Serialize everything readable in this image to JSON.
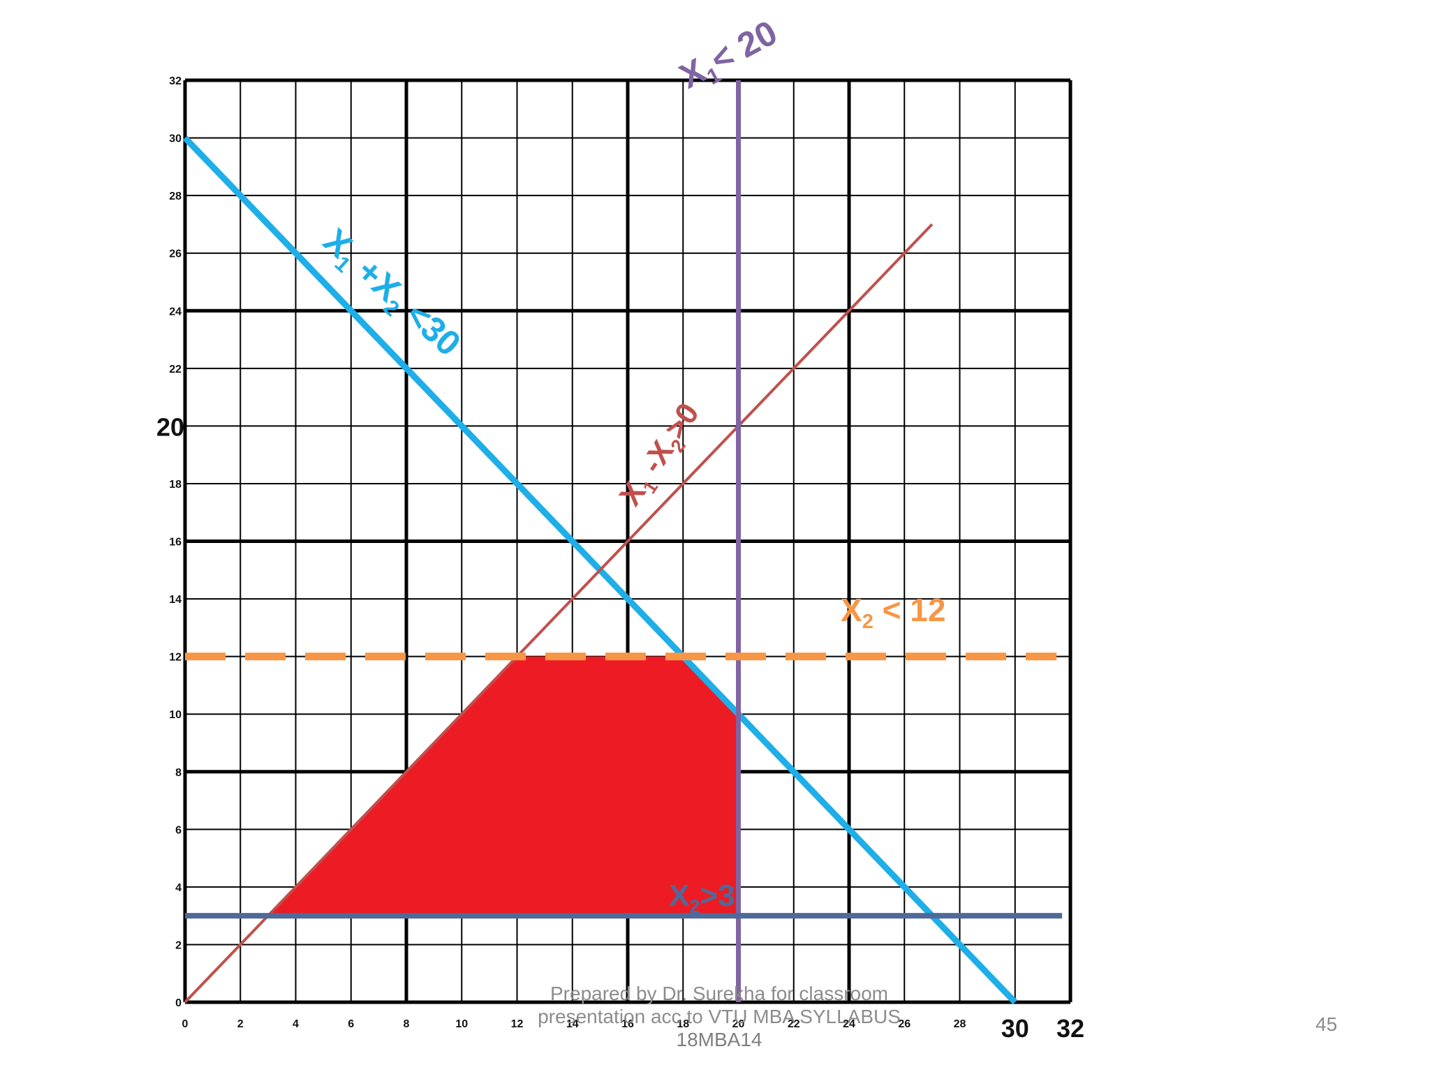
{
  "chart_data": {
    "type": "line",
    "title": "",
    "xlabel": "",
    "ylabel": "",
    "xlim": [
      0,
      32
    ],
    "ylim": [
      0,
      32
    ],
    "grid": true,
    "x_ticks": [
      0,
      2,
      4,
      6,
      8,
      10,
      12,
      14,
      16,
      18,
      20,
      22,
      24,
      26,
      28,
      30,
      32
    ],
    "x_tick_labels": [
      "0",
      "2",
      "4",
      "6",
      "8",
      "10",
      "12",
      "14",
      "16",
      "18",
      "20",
      "22",
      "24",
      "26",
      "28",
      "30",
      "32"
    ],
    "y_ticks": [
      0,
      2,
      4,
      6,
      8,
      10,
      12,
      14,
      16,
      18,
      20,
      22,
      24,
      26,
      28,
      30,
      32
    ],
    "y_tick_labels": [
      "0",
      "2",
      "4",
      "6",
      "8",
      "10",
      "12",
      "14",
      "16",
      "18",
      "20",
      "22",
      "24",
      "26",
      "28",
      "30",
      "32"
    ],
    "series": [
      {
        "name": "X1 + X2 < 30",
        "label_main": "X",
        "label_sub": "1",
        "label_rest": " +X",
        "label_sub2": "2",
        "label_tail": " <30",
        "color": "#1eaee8",
        "points": [
          [
            0,
            30
          ],
          [
            30,
            0
          ]
        ]
      },
      {
        "name": "X1 - X2 > 0",
        "label_main": "X",
        "label_sub": "1",
        "label_rest": " -X",
        "label_sub2": "2",
        "label_tail": ">0",
        "color": "#c0504d",
        "points": [
          [
            0,
            0
          ],
          [
            27,
            27
          ]
        ]
      },
      {
        "name": "X1 < 20",
        "label_main": "X",
        "label_sub": "1",
        "label_tail": "< 20",
        "color": "#8064a2",
        "points": [
          [
            20,
            0
          ],
          [
            20,
            32
          ]
        ]
      },
      {
        "name": "X2 < 12",
        "label_main": "X",
        "label_sub": "2",
        "label_tail": " < 12",
        "color": "#f79646",
        "dashed": true,
        "points": [
          [
            0,
            12
          ],
          [
            31.5,
            12
          ]
        ]
      },
      {
        "name": "X2 > 3",
        "label_main": "X",
        "label_sub": "2",
        "label_tail": ">3",
        "color": "#4f6a9a",
        "points": [
          [
            0,
            3
          ],
          [
            31.7,
            3
          ]
        ]
      }
    ],
    "feasible_region": {
      "color": "#ed1c24",
      "vertices": [
        [
          3,
          3
        ],
        [
          12,
          12
        ],
        [
          18,
          12
        ],
        [
          20,
          10
        ],
        [
          20,
          3
        ]
      ]
    }
  },
  "footer": {
    "line1": "Prepared by Dr. Surekha for classroom",
    "line2": "presentation acc to VTU MBA SYLLABUS",
    "line3": "18MBA14"
  },
  "page_number": "45"
}
